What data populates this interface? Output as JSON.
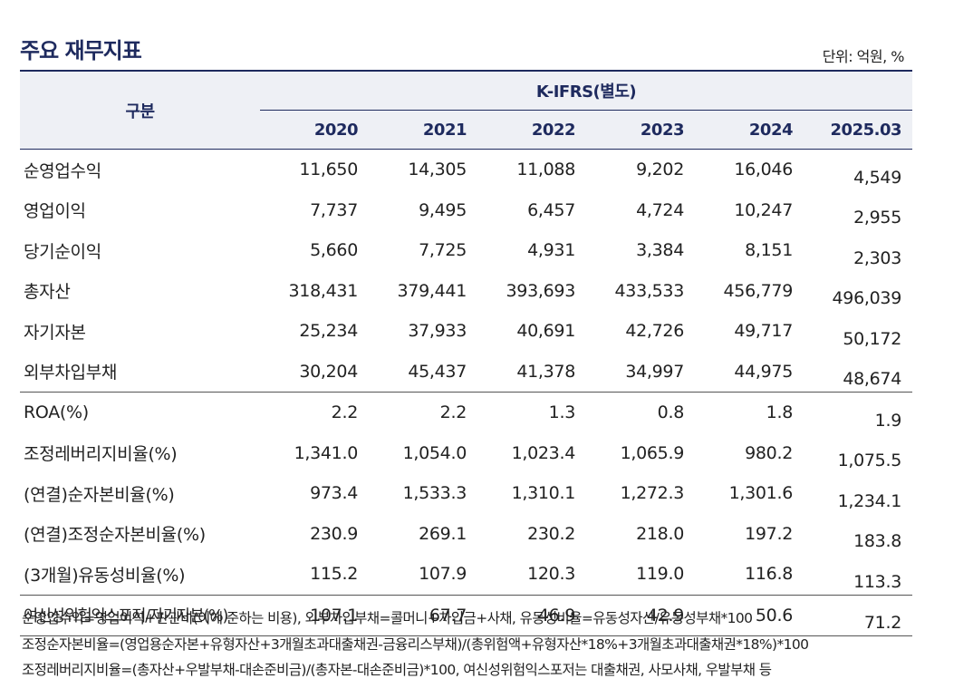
{
  "title": "주요 재무지표",
  "unit": "단위: 억원, %",
  "table": {
    "header_label": "구분",
    "group_label": "K-IFRS(별도)",
    "years": [
      "2020",
      "2021",
      "2022",
      "2023",
      "2024",
      "2025.03"
    ],
    "rows": [
      {
        "label": "순영업수익",
        "values": [
          "11,650",
          "14,305",
          "11,088",
          "9,202",
          "16,046",
          "4,549"
        ]
      },
      {
        "label": "영업이익",
        "values": [
          "7,737",
          "9,495",
          "6,457",
          "4,724",
          "10,247",
          "2,955"
        ]
      },
      {
        "label": "당기순이익",
        "values": [
          "5,660",
          "7,725",
          "4,931",
          "3,384",
          "8,151",
          "2,303"
        ]
      },
      {
        "label": "총자산",
        "values": [
          "318,431",
          "379,441",
          "393,693",
          "433,533",
          "456,779",
          "496,039"
        ]
      },
      {
        "label": "자기자본",
        "values": [
          "25,234",
          "37,933",
          "40,691",
          "42,726",
          "49,717",
          "50,172"
        ]
      },
      {
        "label": "외부차입부채",
        "values": [
          "30,204",
          "45,437",
          "41,378",
          "34,997",
          "44,975",
          "48,674"
        ]
      },
      {
        "label": "ROA(%)",
        "values": [
          "2.2",
          "2.2",
          "1.3",
          "0.8",
          "1.8",
          "1.9"
        ]
      },
      {
        "label": "조정레버리지비율(%)",
        "values": [
          "1,341.0",
          "1,054.0",
          "1,023.4",
          "1,065.9",
          "980.2",
          "1,075.5"
        ]
      },
      {
        "label": "(연결)순자본비율(%)",
        "values": [
          "973.4",
          "1,533.3",
          "1,310.1",
          "1,272.3",
          "1,301.6",
          "1,234.1"
        ]
      },
      {
        "label": "(연결)조정순자본비율(%)",
        "values": [
          "230.9",
          "269.1",
          "230.2",
          "218.0",
          "197.2",
          "183.8"
        ]
      },
      {
        "label": "(3개월)유동성비율(%)",
        "values": [
          "115.2",
          "107.9",
          "120.3",
          "119.0",
          "116.8",
          "113.3"
        ]
      },
      {
        "label": "여신성위험익스포저/자기자본(%)",
        "values": [
          "107.1",
          "67.7",
          "46.9",
          "42.9",
          "50.6",
          "71.2"
        ]
      }
    ]
  },
  "notes": [
    "순영업수익=영업이익+판관비(이에 준하는 비용), 외부차입부채=콜머니+차입금+사채, 유동성비율=유동성자산/유동성부채*100",
    "조정순자본비율=(영업용순자본+유형자산+3개월초과대출채권-금융리스부채)/(총위험액+유형자산*18%+3개월초과대출채권*18%)*100",
    "조정레버리지비율=(총자산+우발부채-대손준비금)/(총자본-대손준비금)*100, 여신성위험익스포저는 대출채권, 사모사채, 우발부채 등"
  ]
}
